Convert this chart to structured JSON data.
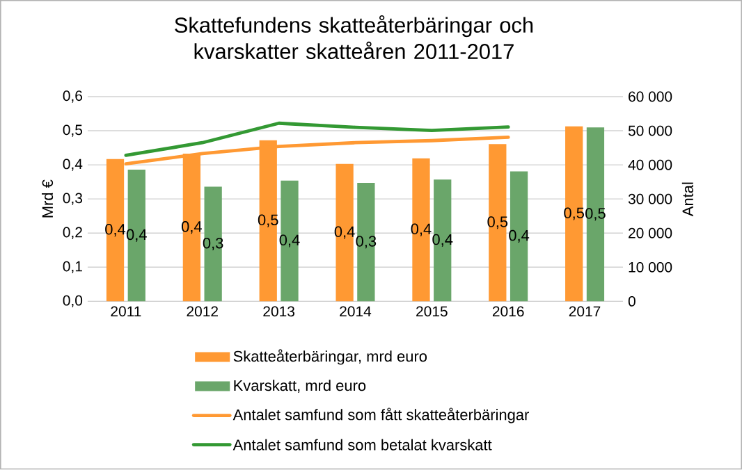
{
  "chart_data": {
    "type": "bar",
    "title": "Skattefundens skatteåterbäringar och kvarskatter skatteåren 2011-2017",
    "ylabel": "Mrd €",
    "y2label": "Antal",
    "categories": [
      "2011",
      "2012",
      "2013",
      "2014",
      "2015",
      "2016",
      "2017"
    ],
    "series": [
      {
        "name": "Skatteåterbäringar, mrd euro",
        "color": "#ff9933",
        "values": [
          0.417,
          0.433,
          0.472,
          0.403,
          0.419,
          0.461,
          0.513
        ],
        "value_labels": [
          "0,4",
          "0,4",
          "0,5",
          "0,4",
          "0,4",
          "0,5",
          "0,5"
        ]
      },
      {
        "name": "Kvarskatt, mrd euro",
        "color": "#6aa66a",
        "values": [
          0.386,
          0.336,
          0.354,
          0.347,
          0.357,
          0.381,
          0.51
        ],
        "value_labels": [
          "0,4",
          "0,3",
          "0,4",
          "0,3",
          "0,4",
          "0,4",
          "0,5"
        ]
      },
      {
        "name": "Antalet samfund som fått skatteåterbäringar",
        "type": "line",
        "axis": "y2",
        "color": "#ff9933",
        "values": [
          40300,
          43300,
          45400,
          46500,
          47100,
          48100,
          null
        ]
      },
      {
        "name": "Antalet samfund som betalat kvarskatt",
        "type": "line",
        "axis": "y2",
        "color": "#339933",
        "values": [
          42800,
          46500,
          52200,
          51000,
          50100,
          51100,
          null
        ]
      }
    ],
    "ylim": [
      0,
      0.6
    ],
    "yticks": [
      {
        "value": 0,
        "label": "0,0"
      },
      {
        "value": 0.1,
        "label": "0,1"
      },
      {
        "value": 0.2,
        "label": "0,2"
      },
      {
        "value": 0.3,
        "label": "0,3"
      },
      {
        "value": 0.4,
        "label": "0,4"
      },
      {
        "value": 0.5,
        "label": "0,5"
      },
      {
        "value": 0.6,
        "label": "0,6"
      }
    ],
    "y2lim": [
      0,
      60000
    ],
    "y2ticks": [
      0,
      {
        "value": 10000,
        "label": "10 000"
      },
      {
        "value": 20000,
        "label": "20 000"
      },
      {
        "value": 30000,
        "label": "30 000"
      },
      {
        "value": 40000,
        "label": "40 000"
      },
      {
        "value": 50000,
        "label": "50 000"
      },
      {
        "value": 60000,
        "label": "60 000"
      }
    ],
    "grid": "y",
    "legend": "bottom",
    "line_style": "solid",
    "marker": "none"
  }
}
